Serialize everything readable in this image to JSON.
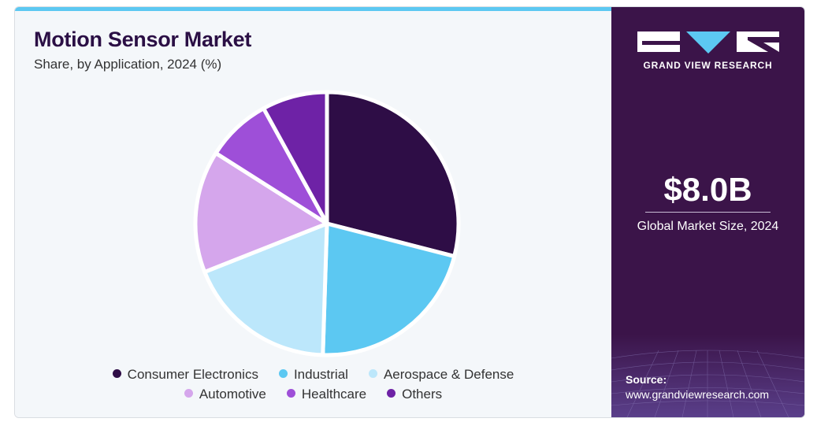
{
  "header": {
    "title": "Motion Sensor Market",
    "subtitle": "Share, by Application, 2024 (%)"
  },
  "chart_data": {
    "type": "pie",
    "title": "Motion Sensor Market",
    "subtitle": "Share, by Application, 2024 (%)",
    "categories": [
      "Consumer Electronics",
      "Industrial",
      "Aerospace & Defense",
      "Automotive",
      "Healthcare",
      "Others"
    ],
    "values": [
      29,
      21.5,
      18.5,
      15,
      8,
      8
    ],
    "colors": [
      "#2e0d46",
      "#5cc8f2",
      "#bce7fb",
      "#d5a6ec",
      "#9e4fd8",
      "#6e22a6"
    ],
    "legend_position": "bottom"
  },
  "sidebar": {
    "brand": "GRAND VIEW RESEARCH",
    "market_value": "$8.0B",
    "market_label": "Global Market Size, 2024",
    "source_title": "Source:",
    "source_url": "www.grandviewresearch.com"
  }
}
